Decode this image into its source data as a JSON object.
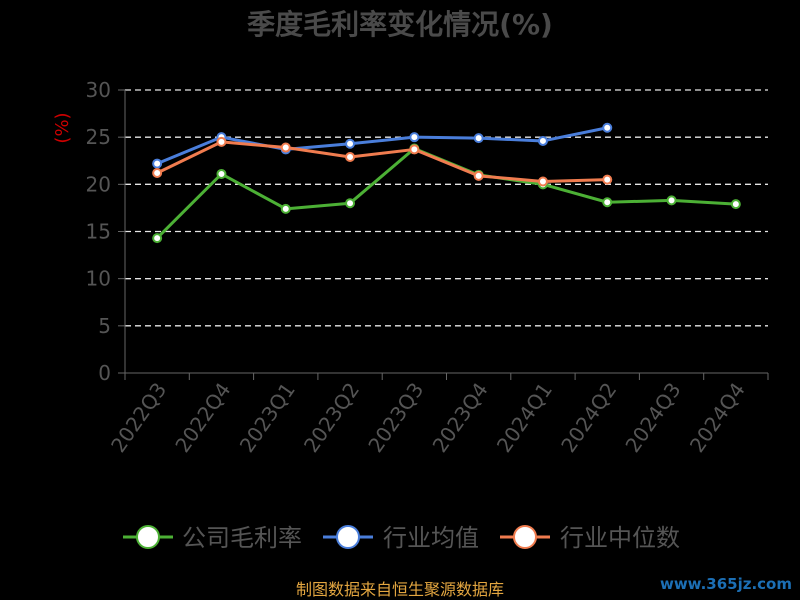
{
  "chart_data": {
    "type": "line",
    "title": "季度毛利率变化情况(%)",
    "unit_label": "(%)",
    "categories": [
      "2022Q3",
      "2022Q4",
      "2023Q1",
      "2023Q2",
      "2023Q3",
      "2023Q4",
      "2024Q1",
      "2024Q2",
      "2024Q3",
      "2024Q4"
    ],
    "ylim": [
      0,
      30
    ],
    "yticks": [
      0,
      5,
      10,
      15,
      20,
      25,
      30
    ],
    "grid": true,
    "legend_position": "bottom",
    "series": [
      {
        "name": "公司毛利率",
        "color": "#4cb035",
        "values": [
          14.3,
          21.1,
          17.4,
          18.0,
          23.8,
          21.0,
          20.0,
          18.1,
          18.3,
          17.9
        ]
      },
      {
        "name": "行业均值",
        "color": "#4a7edb",
        "values": [
          22.2,
          25.0,
          23.7,
          24.3,
          25.0,
          24.9,
          24.6,
          26.0,
          null,
          null
        ]
      },
      {
        "name": "行业中位数",
        "color": "#f07c4f",
        "values": [
          21.2,
          24.5,
          23.9,
          22.9,
          23.7,
          20.9,
          20.3,
          20.5,
          null,
          null
        ]
      }
    ]
  },
  "footer": {
    "source": "制图数据来自恒生聚源数据库",
    "watermark": "www.365jz.com"
  }
}
